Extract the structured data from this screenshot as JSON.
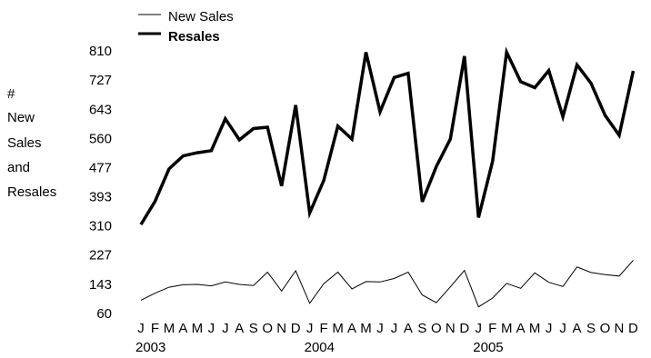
{
  "chart_data": {
    "type": "line",
    "title": "",
    "ylabel_lines": [
      "#",
      "New",
      "Sales",
      "and",
      "Resales"
    ],
    "ylim": [
      60,
      810
    ],
    "yticks": [
      60,
      143,
      227,
      310,
      393,
      477,
      560,
      643,
      727,
      810
    ],
    "month_labels": [
      "J",
      "F",
      "M",
      "A",
      "M",
      "J",
      "J",
      "A",
      "S",
      "O",
      "N",
      "D",
      "J",
      "F",
      "M",
      "A",
      "M",
      "J",
      "J",
      "A",
      "S",
      "O",
      "N",
      "D",
      "J",
      "F",
      "M",
      "A",
      "M",
      "J",
      "J",
      "A",
      "S",
      "O",
      "N",
      "D"
    ],
    "years": [
      "2003",
      "2004",
      "2005"
    ],
    "legend_position": "top-left",
    "grid": false,
    "series": [
      {
        "name": "New Sales",
        "style": "thin",
        "color": "#000000",
        "values": [
          98,
          118,
          135,
          142,
          143,
          139,
          150,
          143,
          140,
          178,
          124,
          182,
          89,
          145,
          178,
          130,
          151,
          150,
          160,
          178,
          113,
          91,
          136,
          183,
          79,
          104,
          146,
          132,
          176,
          149,
          137,
          193,
          177,
          171,
          167,
          212
        ]
      },
      {
        "name": "Resales",
        "style": "thick",
        "color": "#000000",
        "values": [
          314,
          380,
          473,
          510,
          519,
          525,
          616,
          556,
          588,
          592,
          424,
          655,
          347,
          440,
          595,
          558,
          806,
          636,
          734,
          746,
          379,
          480,
          558,
          795,
          334,
          495,
          806,
          722,
          705,
          754,
          622,
          770,
          718,
          626,
          569,
          753
        ]
      }
    ]
  }
}
